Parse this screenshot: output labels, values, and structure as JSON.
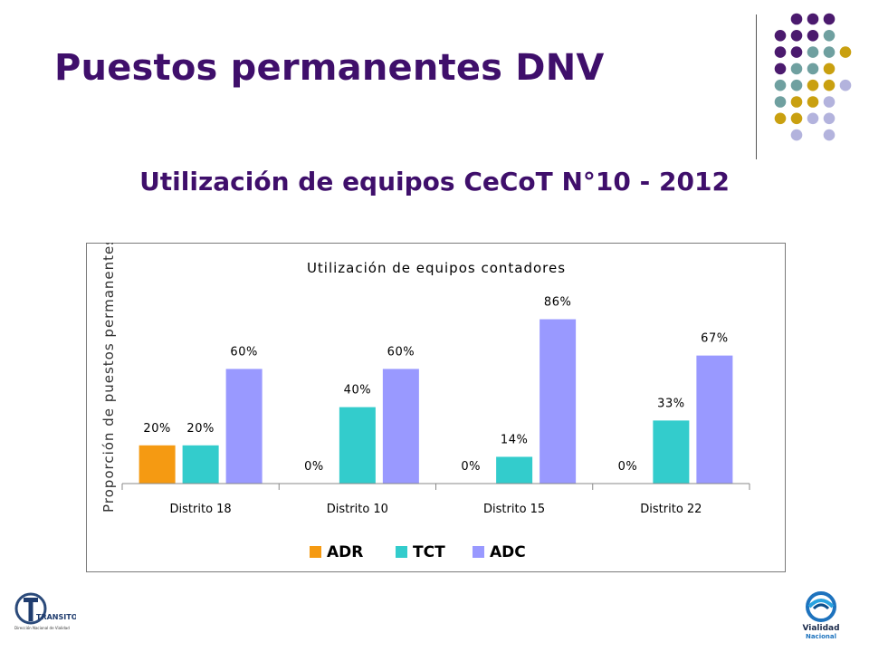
{
  "slide": {
    "title": "Puestos permanentes DNV",
    "subtitle": "Utilización de equipos CeCoT N°10 - 2012"
  },
  "colors": {
    "title": "#3f0f6b",
    "ADR": "#f59a12",
    "TCT": "#33cccc",
    "ADC": "#9999ff"
  },
  "chart_data": {
    "type": "bar",
    "title": "Utilización de equipos contadores",
    "ylabel": "Proporción de puestos permanentes",
    "xlabel": "",
    "categories": [
      "Distrito 18",
      "Distrito 10",
      "Distrito 15",
      "Distrito 22"
    ],
    "series": [
      {
        "name": "ADR",
        "values": [
          20,
          0,
          0,
          0
        ],
        "labels": [
          "20%",
          "0%",
          "0%",
          "0%"
        ]
      },
      {
        "name": "TCT",
        "values": [
          20,
          40,
          14,
          33
        ],
        "labels": [
          "20%",
          "40%",
          "14%",
          "33%"
        ]
      },
      {
        "name": "ADC",
        "values": [
          60,
          60,
          86,
          67
        ],
        "labels": [
          "60%",
          "60%",
          "86%",
          "67%"
        ]
      }
    ],
    "ylim": [
      0,
      100
    ],
    "grid": false,
    "legend": "bottom"
  },
  "logos": {
    "left_text": "TRANSITO",
    "left_subtext": "Dirección Nacional de Vialidad",
    "right_line1": "Vialidad",
    "right_line2": "Nacional"
  }
}
